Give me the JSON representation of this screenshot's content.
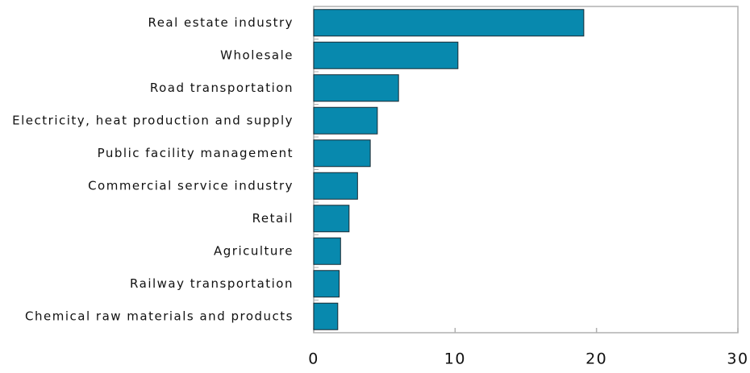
{
  "chart_data": {
    "type": "bar",
    "orientation": "horizontal",
    "categories": [
      "Real estate industry",
      "Wholesale",
      "Road transportation",
      "Electricity, heat production and supply",
      "Public facility management",
      "Commercial service industry",
      "Retail",
      "Agriculture",
      "Railway transportation",
      "Chemical raw materials and products"
    ],
    "values": [
      19.1,
      10.2,
      6.0,
      4.5,
      4.0,
      3.1,
      2.5,
      1.9,
      1.8,
      1.7
    ],
    "color": "#0889ae",
    "xlim": [
      0,
      30
    ],
    "xticks": [
      0,
      10,
      20,
      30
    ],
    "grid": false
  }
}
